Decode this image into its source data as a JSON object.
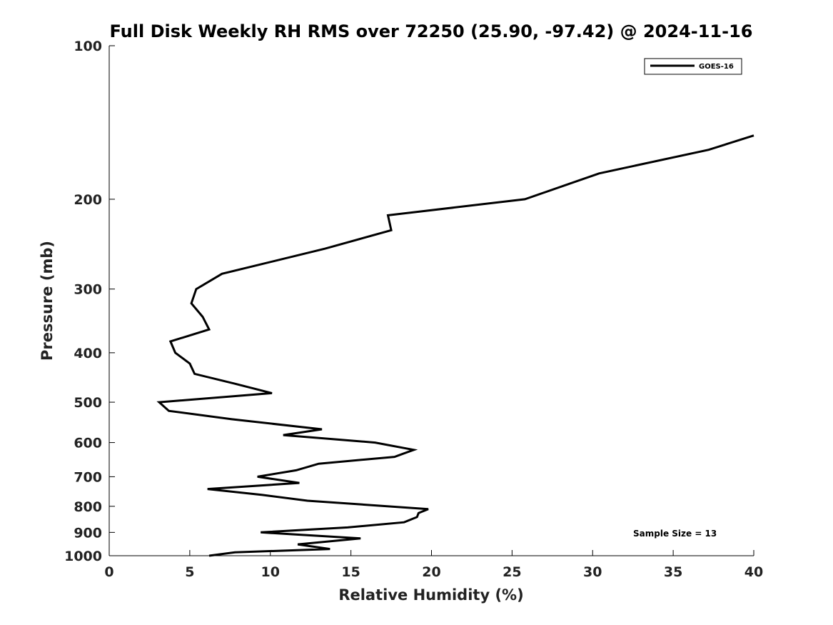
{
  "chart_data": {
    "type": "line",
    "title": "Full Disk Weekly RH RMS over 72250 (25.90, -97.42) @ 2024-11-16",
    "xlabel": "Relative Humidity (%)",
    "ylabel": "Pressure (mb)",
    "xlim": [
      0,
      40
    ],
    "ylim": [
      100,
      1000
    ],
    "y_scale": "log",
    "y_reversed": true,
    "grid": false,
    "x_ticks": [
      0,
      5,
      10,
      15,
      20,
      25,
      30,
      35,
      40
    ],
    "x_tick_labels": [
      "0",
      "5",
      "10",
      "15",
      "20",
      "25",
      "30",
      "35",
      "40"
    ],
    "y_ticks": [
      100,
      200,
      300,
      400,
      500,
      600,
      700,
      800,
      900,
      1000
    ],
    "y_tick_labels": [
      "100",
      "200",
      "300",
      "400",
      "500",
      "600",
      "700",
      "800",
      "900",
      "1000"
    ],
    "legend": {
      "placement": "top-right",
      "entries": [
        "GOES-16"
      ]
    },
    "annotation": "Sample Size = 13",
    "series": [
      {
        "name": "GOES-16",
        "color": "#000000",
        "points": [
          [
            40.0,
            150
          ],
          [
            37.2,
            160
          ],
          [
            30.4,
            178
          ],
          [
            25.8,
            200
          ],
          [
            17.3,
            215
          ],
          [
            17.5,
            230
          ],
          [
            13.4,
            250
          ],
          [
            7.0,
            280
          ],
          [
            5.4,
            300
          ],
          [
            5.1,
            320
          ],
          [
            5.8,
            340
          ],
          [
            6.2,
            360
          ],
          [
            3.8,
            380
          ],
          [
            4.1,
            400
          ],
          [
            5.0,
            420
          ],
          [
            5.3,
            440
          ],
          [
            7.8,
            460
          ],
          [
            10.1,
            480
          ],
          [
            3.1,
            500
          ],
          [
            3.7,
            520
          ],
          [
            7.6,
            540
          ],
          [
            13.2,
            565
          ],
          [
            10.8,
            580
          ],
          [
            16.5,
            600
          ],
          [
            18.9,
            620
          ],
          [
            17.7,
            640
          ],
          [
            13.0,
            660
          ],
          [
            11.6,
            680
          ],
          [
            9.2,
            700
          ],
          [
            11.8,
            720
          ],
          [
            6.1,
            740
          ],
          [
            9.5,
            760
          ],
          [
            12.3,
            780
          ],
          [
            19.8,
            810
          ],
          [
            19.2,
            825
          ],
          [
            19.1,
            840
          ],
          [
            18.3,
            860
          ],
          [
            14.8,
            880
          ],
          [
            9.4,
            900
          ],
          [
            15.6,
            925
          ],
          [
            11.7,
            950
          ],
          [
            13.7,
            970
          ],
          [
            7.8,
            985
          ],
          [
            6.2,
            1000
          ]
        ]
      }
    ]
  }
}
